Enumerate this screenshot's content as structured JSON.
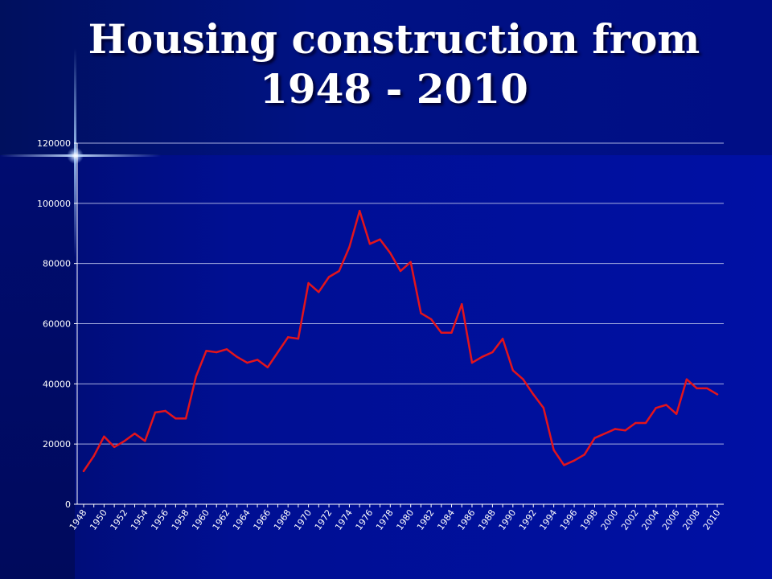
{
  "title": {
    "line1": "Housing construction from",
    "line2": "1948 - 2010"
  },
  "colors": {
    "line": "#e3141c",
    "grid": "#a8b0e0",
    "axis": "#ffffff",
    "text": "#ffffff"
  },
  "chart_data": {
    "type": "line",
    "title": "Housing construction from 1948 - 2010",
    "xlabel": "",
    "ylabel": "",
    "ylim": [
      0,
      120000
    ],
    "y_ticks": [
      0,
      20000,
      40000,
      60000,
      80000,
      100000,
      120000
    ],
    "x_tick_labels": [
      "1948",
      "1950",
      "1952",
      "1954",
      "1956",
      "1958",
      "1960",
      "1962",
      "1964",
      "1966",
      "1968",
      "1970",
      "1972",
      "1974",
      "1976",
      "1978",
      "1980",
      "1982",
      "1984",
      "1986",
      "1988",
      "1990",
      "1992",
      "1994",
      "1996",
      "1998",
      "2000",
      "2002",
      "2004",
      "2006",
      "2008",
      "2010"
    ],
    "grid": true,
    "legend": "none",
    "x": [
      1948,
      1949,
      1950,
      1951,
      1952,
      1953,
      1954,
      1955,
      1956,
      1957,
      1958,
      1959,
      1960,
      1961,
      1962,
      1963,
      1964,
      1965,
      1966,
      1967,
      1968,
      1969,
      1970,
      1971,
      1972,
      1973,
      1974,
      1975,
      1976,
      1977,
      1978,
      1979,
      1980,
      1981,
      1982,
      1983,
      1984,
      1985,
      1986,
      1987,
      1988,
      1989,
      1990,
      1991,
      1992,
      1993,
      1994,
      1995,
      1996,
      1997,
      1998,
      1999,
      2000,
      2001,
      2002,
      2003,
      2004,
      2005,
      2006,
      2007,
      2008,
      2009,
      2010
    ],
    "series": [
      {
        "values": [
          11000,
          16000,
          22500,
          19000,
          21000,
          23500,
          21000,
          30500,
          31000,
          28500,
          28500,
          42500,
          51000,
          50500,
          51500,
          49000,
          47000,
          48000,
          45500,
          50500,
          55500,
          55000,
          73500,
          70500,
          75500,
          77500,
          85500,
          97500,
          86500,
          88000,
          83500,
          77500,
          80500,
          63500,
          61500,
          57000,
          57000,
          66500,
          47000,
          49000,
          50500,
          55000,
          44500,
          41500,
          36500,
          32000,
          18000,
          13000,
          14500,
          16500,
          22000,
          23500,
          25000,
          24500,
          27000,
          27000,
          32000,
          33000,
          30000,
          41500,
          38500,
          38500,
          36500
        ]
      }
    ]
  }
}
